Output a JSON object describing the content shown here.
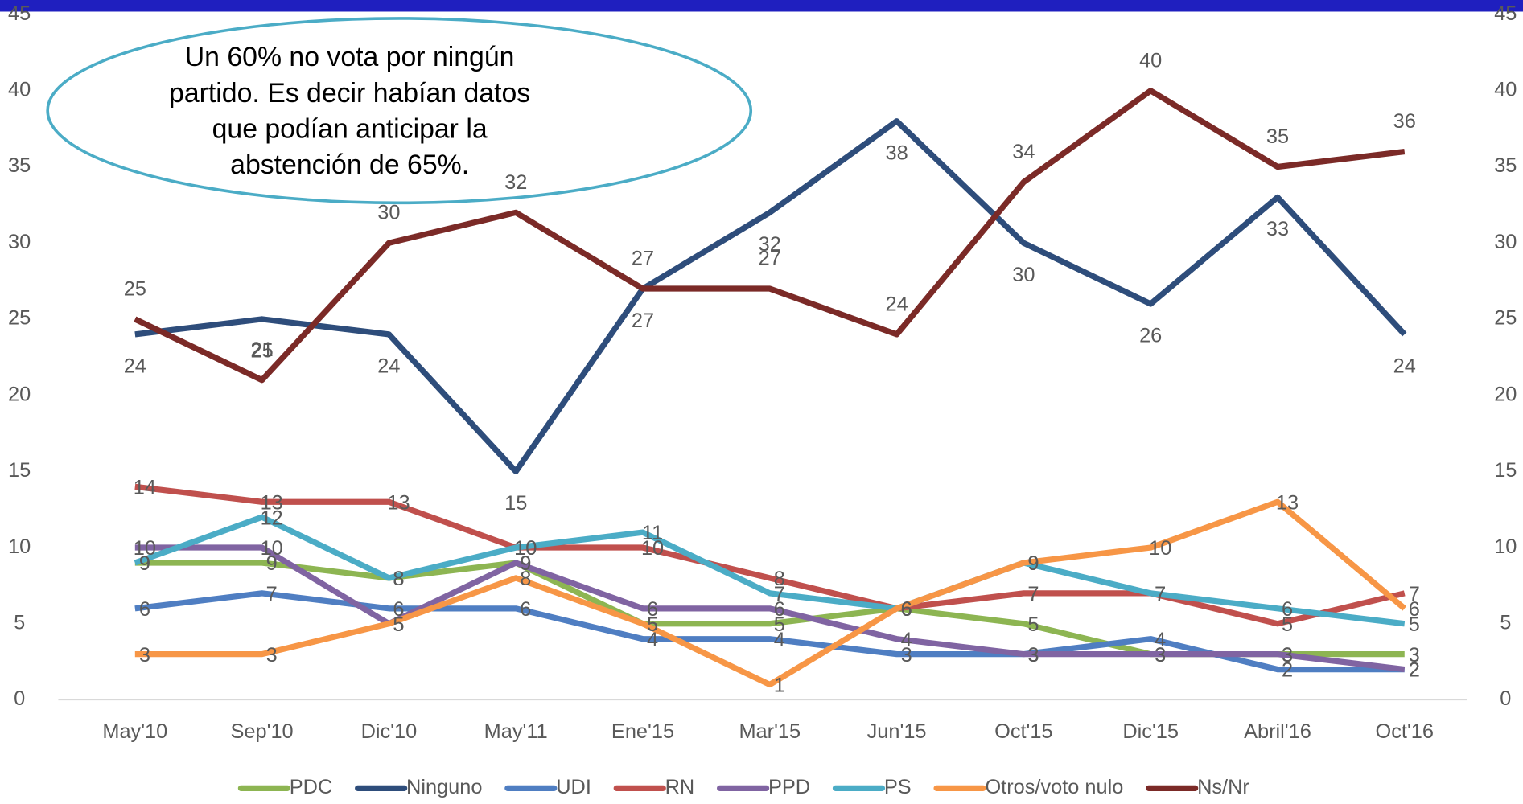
{
  "chart_data": {
    "type": "line",
    "annotation": "Un 60% no vota por ningún partido. Es decir habían datos que podían anticipar la abstención de 65%.",
    "categories": [
      "May'10",
      "Sep'10",
      "Dic'10",
      "May'11",
      "Ene'15",
      "Mar'15",
      "Jun'15",
      "Oct'15",
      "Dic'15",
      "Abril'16",
      "Oct'16"
    ],
    "ylim": [
      0,
      45
    ],
    "yticks": [
      0,
      5,
      10,
      15,
      20,
      25,
      30,
      35,
      40,
      45
    ],
    "y2lim": [
      0,
      45
    ],
    "y2ticks": [
      0,
      5,
      10,
      15,
      20,
      25,
      30,
      35,
      40,
      45
    ],
    "legend": "bottom",
    "series": [
      {
        "name": "PDC",
        "color": "#8db552",
        "values": [
          9,
          9,
          8,
          9,
          5,
          5,
          6,
          5,
          3,
          3,
          3
        ]
      },
      {
        "name": "Ninguno",
        "color": "#2e4d7b",
        "values": [
          24,
          25,
          24,
          15,
          27,
          32,
          38,
          30,
          26,
          33,
          24
        ]
      },
      {
        "name": "UDI",
        "color": "#4f7ec2",
        "values": [
          6,
          7,
          6,
          6,
          4,
          4,
          3,
          3,
          4,
          2,
          2
        ]
      },
      {
        "name": "RN",
        "color": "#c0504d",
        "values": [
          14,
          13,
          13,
          10,
          10,
          8,
          6,
          7,
          7,
          5,
          7
        ]
      },
      {
        "name": "PPD",
        "color": "#8064a2",
        "values": [
          10,
          10,
          5,
          9,
          6,
          6,
          4,
          3,
          3,
          3,
          2
        ]
      },
      {
        "name": "PS",
        "color": "#4bacc6",
        "values": [
          9,
          12,
          8,
          10,
          11,
          7,
          6,
          9,
          7,
          6,
          5
        ]
      },
      {
        "name": "Otros/voto nulo",
        "color": "#f79646",
        "values": [
          3,
          3,
          5,
          8,
          5,
          1,
          6,
          9,
          10,
          13,
          6
        ]
      },
      {
        "name": "Ns/Nr",
        "color": "#7b2a27",
        "values": [
          25,
          21,
          30,
          32,
          27,
          27,
          24,
          34,
          40,
          35,
          36
        ]
      }
    ]
  }
}
